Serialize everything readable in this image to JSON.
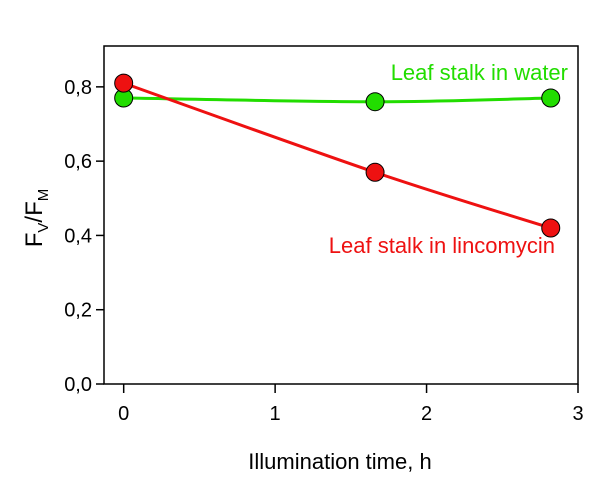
{
  "chart_data": {
    "type": "line",
    "x_label": "Illumination time, h",
    "y_label": {
      "main1": "F",
      "sub1": "V",
      "main2": "/F",
      "sub2": "M"
    },
    "xlim": [
      -0.13,
      3
    ],
    "xticks": [
      0,
      1,
      2,
      3
    ],
    "ylim": [
      0,
      0.91
    ],
    "yticks": [
      {
        "value": 0,
        "label": "0,0"
      },
      {
        "value": 0.2,
        "label": "0,2"
      },
      {
        "value": 0.4,
        "label": "0,4"
      },
      {
        "value": 0.6,
        "label": "0,6"
      },
      {
        "value": 0.8,
        "label": "0,8"
      }
    ],
    "series": [
      {
        "name": "Leaf stalk in water",
        "color": "#22dd00",
        "x": [
          0,
          1.66,
          2.82
        ],
        "values": [
          0.77,
          0.76,
          0.77
        ]
      },
      {
        "name": "Leaf stalk in lincomycin",
        "color": "#ee1111",
        "x": [
          0,
          1.66,
          2.82
        ],
        "values": [
          0.81,
          0.57,
          0.42
        ]
      }
    ]
  }
}
